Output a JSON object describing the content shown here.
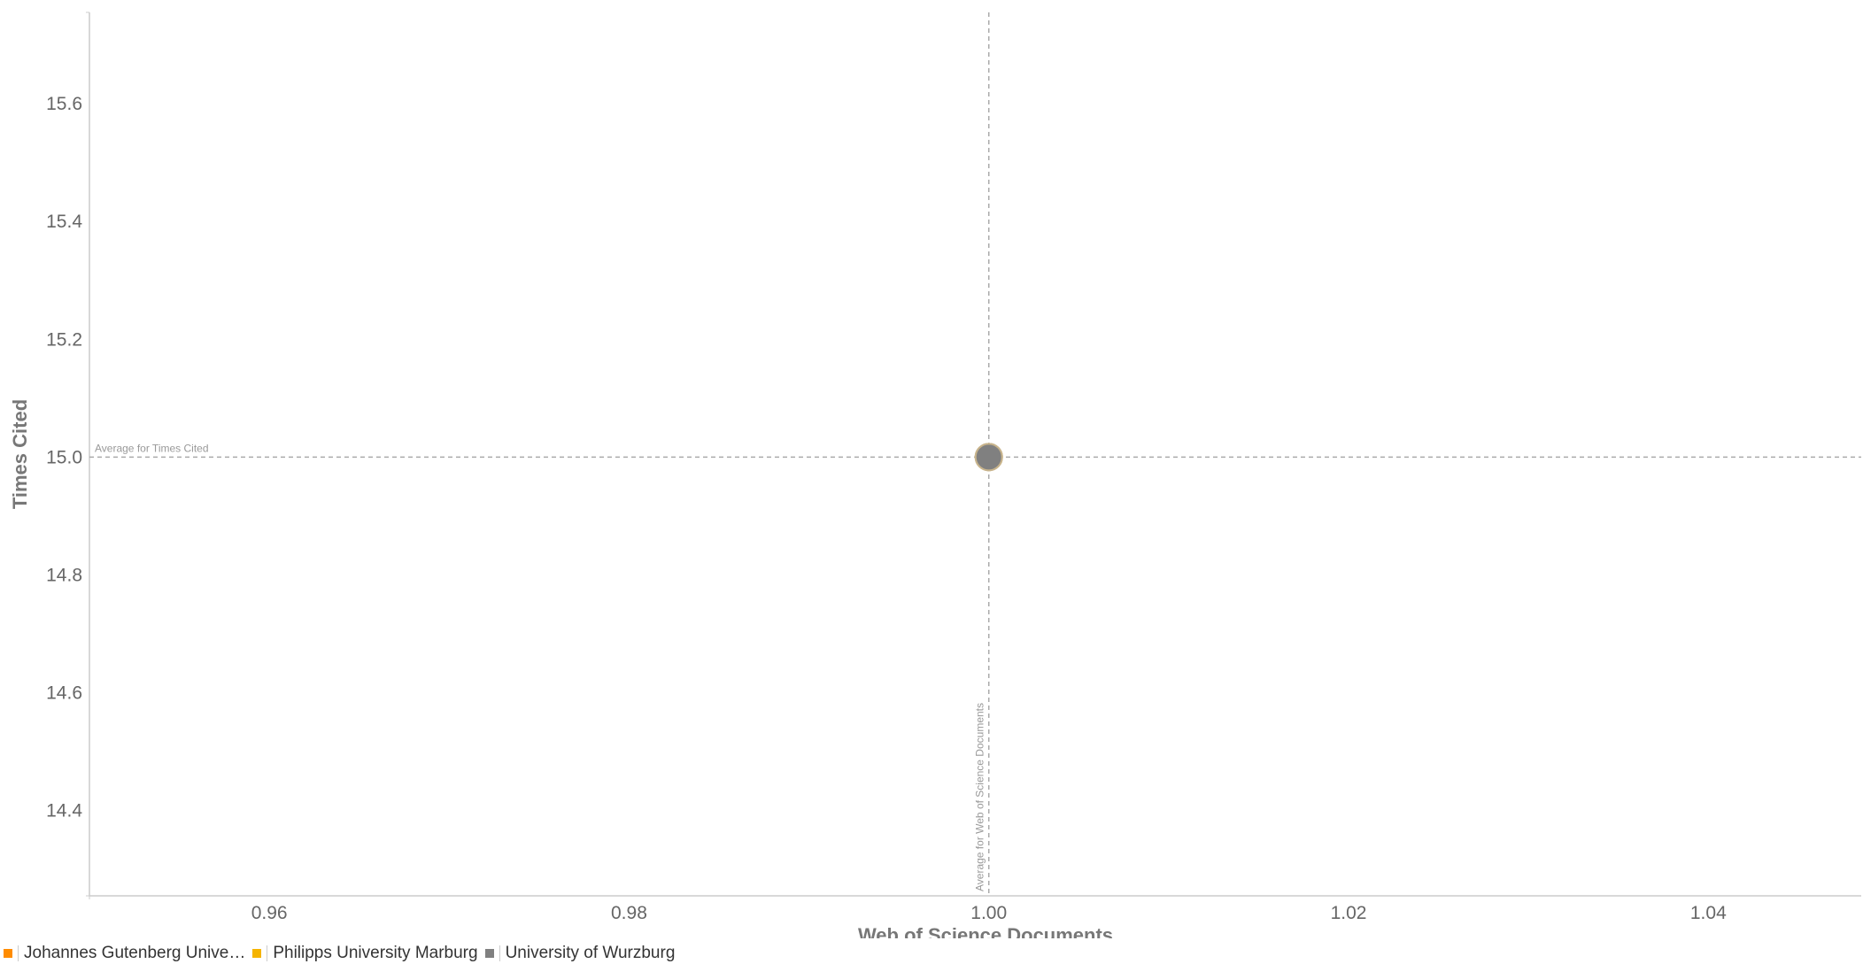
{
  "chart_data": {
    "type": "scatter",
    "xlabel": "Web of Science Documents",
    "ylabel": "Times Cited",
    "xlim": [
      0.95,
      1.0485
    ],
    "ylim": [
      14.255,
      15.755
    ],
    "x_ticks": [
      0.96,
      0.98,
      1.0,
      1.02,
      1.04
    ],
    "y_ticks": [
      14.4,
      14.6,
      14.8,
      15.0,
      15.2,
      15.4,
      15.6
    ],
    "x_tick_labels": [
      "0.96",
      "0.98",
      "1.00",
      "1.02",
      "1.04"
    ],
    "y_tick_labels": [
      "14.4",
      "14.6",
      "14.8",
      "15.0",
      "15.2",
      "15.4",
      "15.6"
    ],
    "grid": false,
    "series": [
      {
        "name": "Johannes Gutenberg Unive…",
        "color": "#ff8c00",
        "points": [
          {
            "x": 1.0,
            "y": 15.0
          }
        ]
      },
      {
        "name": "Philipps University Marburg",
        "color": "#f5b400",
        "points": [
          {
            "x": 1.0,
            "y": 15.0
          }
        ]
      },
      {
        "name": "University of Wurzburg",
        "color": "#808080",
        "points": [
          {
            "x": 1.0,
            "y": 15.0
          }
        ]
      }
    ],
    "reference_lines": [
      {
        "axis": "y",
        "value": 15.0,
        "label": "Average for Times Cited"
      },
      {
        "axis": "x",
        "value": 1.0,
        "label": "Average for Web of Science Documents"
      }
    ],
    "legend_position": "bottom-left"
  },
  "colors": {
    "axis": "#cccccc",
    "reference_line": "#aaaaaa",
    "marker_outline": "#c8b48c"
  }
}
